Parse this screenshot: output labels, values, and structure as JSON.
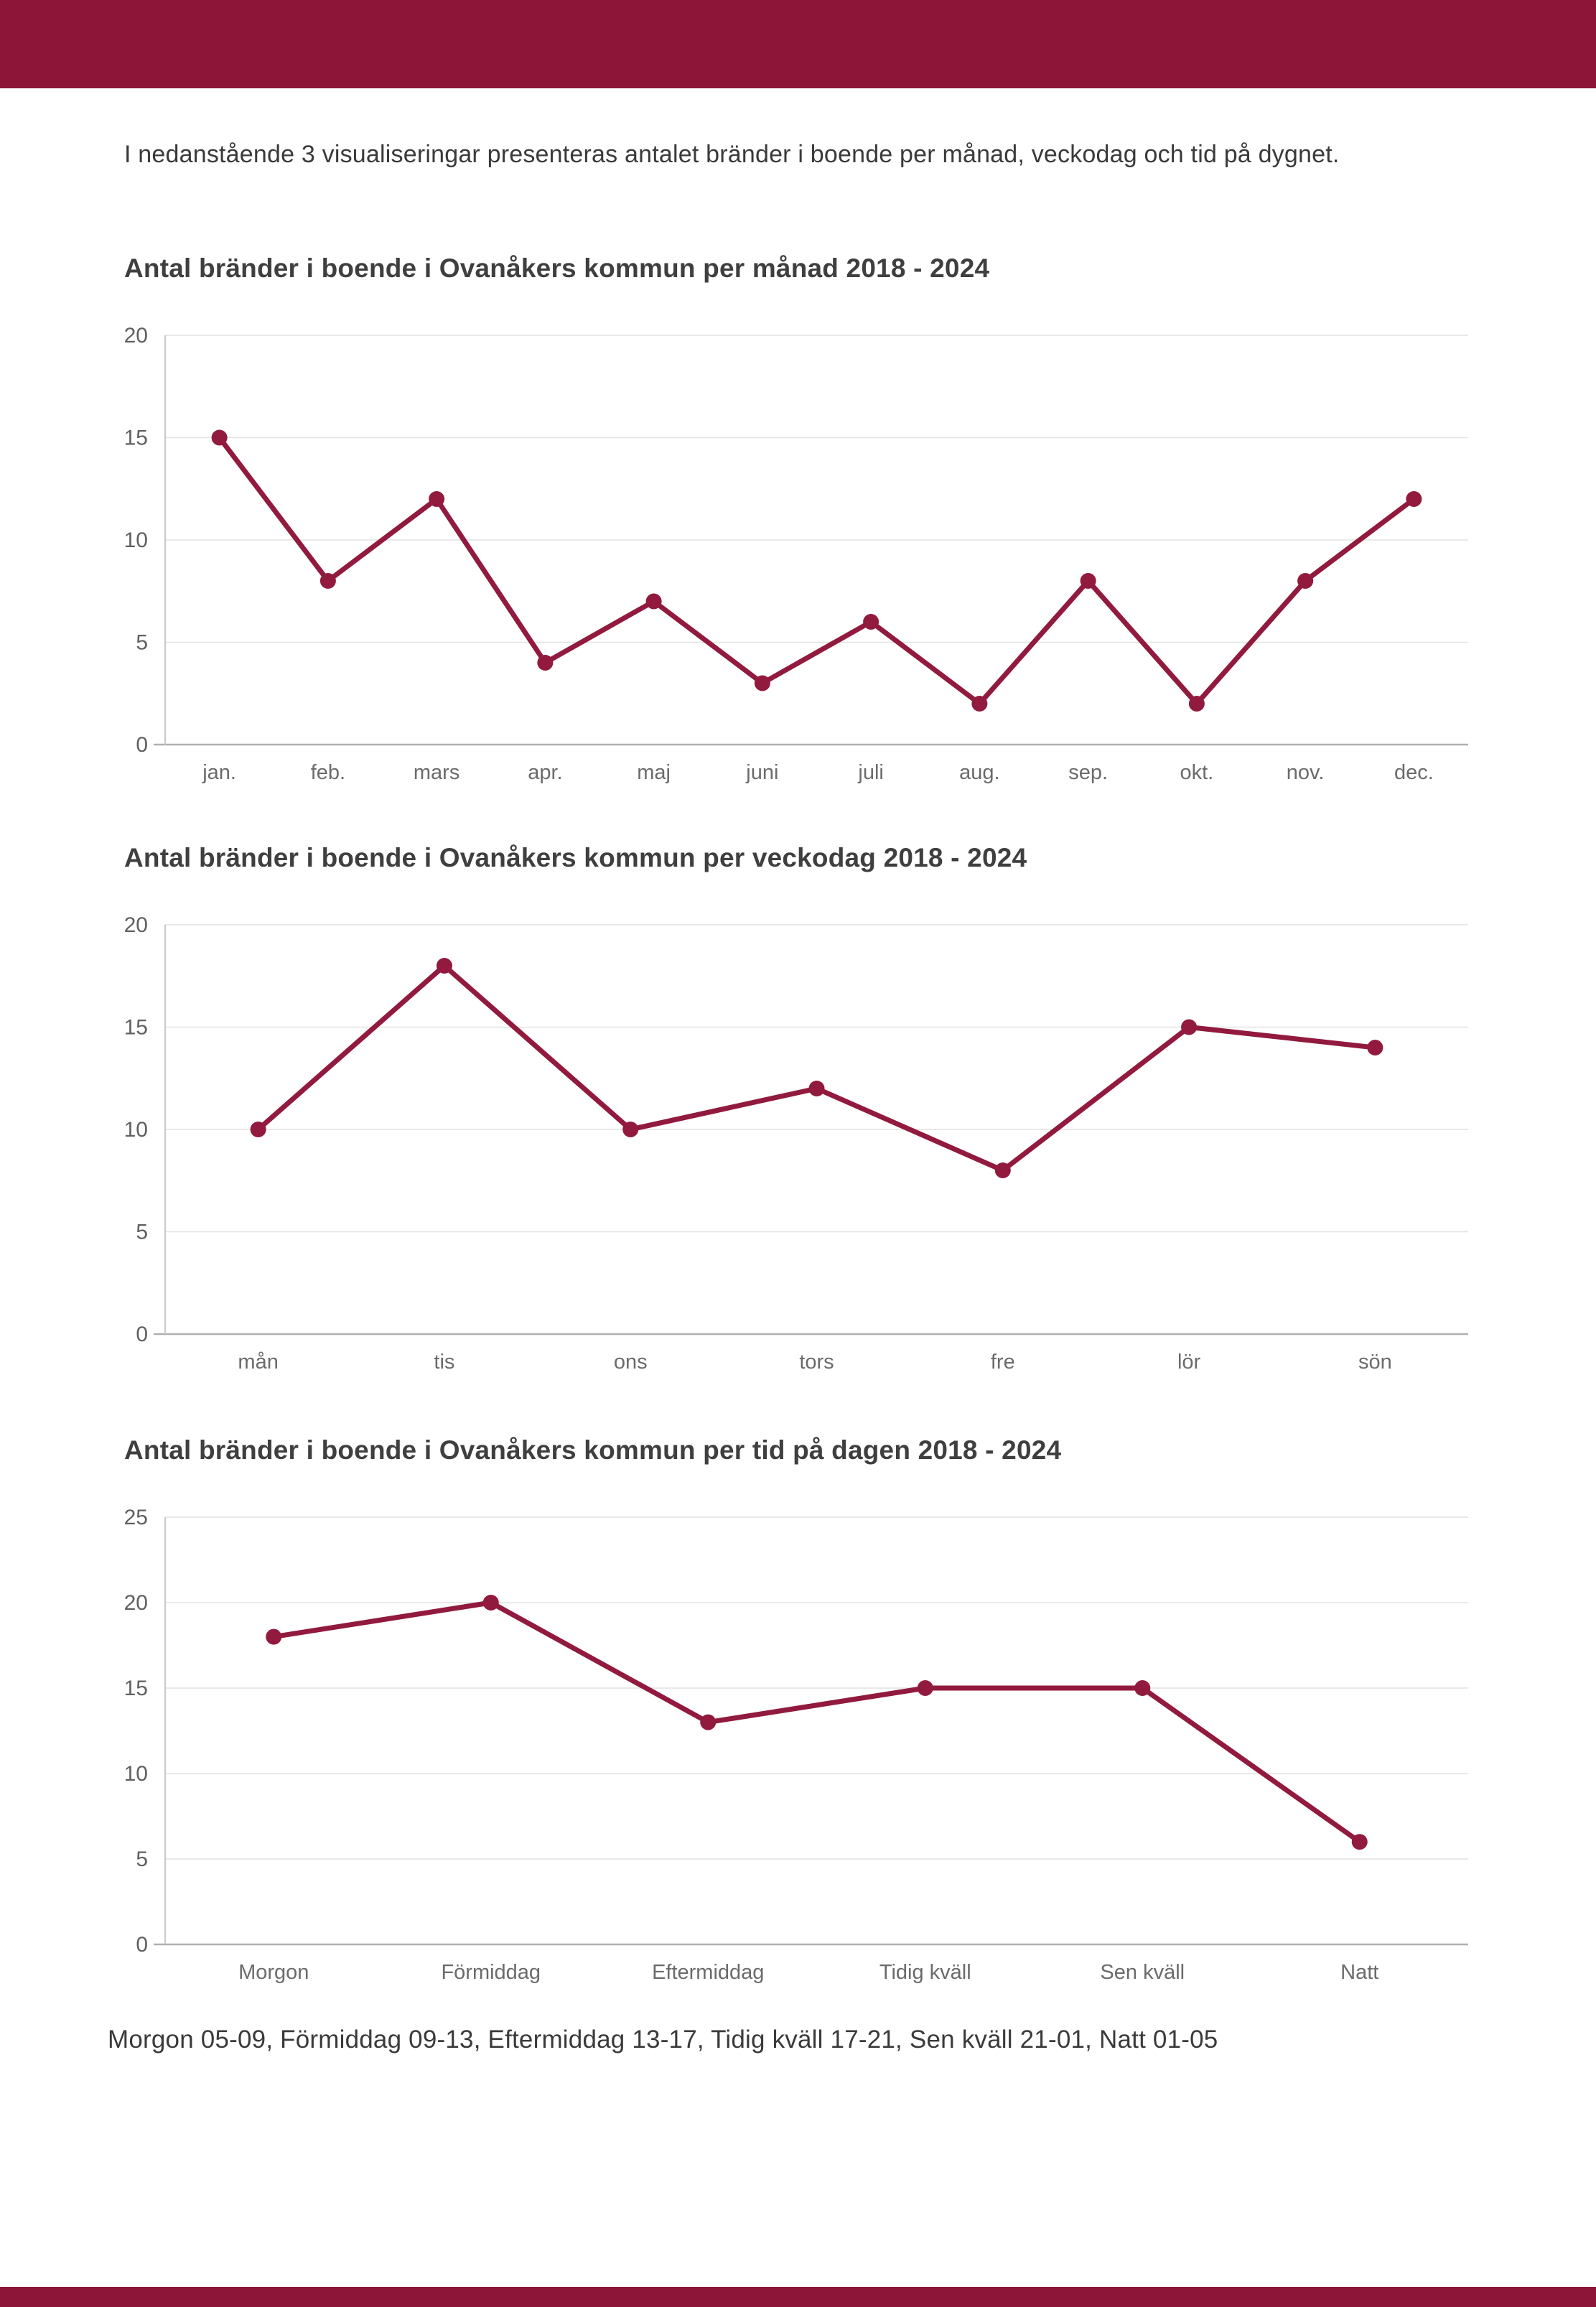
{
  "page": {
    "intro": "I nedanstående 3 visualiseringar presenteras antalet bränder i boende per månad, veckodag och tid på dygnet.",
    "footnote": "Morgon 05-09, Förmiddag 09-13, Eftermiddag 13-17, Tidig kväll 17-21, Sen kväll 21-01, Natt 01-05",
    "accent_color": "#8d1538",
    "series_color": "#911a3e",
    "gridline_color": "#e2e2e2",
    "axis_color": "#c9c9c9",
    "baseline_color": "#b0b0b0",
    "tick_label_color": "#606060"
  },
  "chart_data": [
    {
      "type": "line",
      "title": "Antal bränder i boende i Ovanåkers kommun per månad 2018 - 2024",
      "categories": [
        "jan.",
        "feb.",
        "mars",
        "apr.",
        "maj",
        "juni",
        "juli",
        "aug.",
        "sep.",
        "okt.",
        "nov.",
        "dec."
      ],
      "values": [
        15,
        8,
        12,
        4,
        7,
        3,
        6,
        2,
        8,
        2,
        8,
        12
      ],
      "xlabel": "",
      "ylabel": "",
      "ylim": [
        0,
        20
      ],
      "yticks": [
        0,
        5,
        10,
        15,
        20
      ],
      "grid": true,
      "legend": "none"
    },
    {
      "type": "line",
      "title": "Antal bränder i boende i Ovanåkers kommun per veckodag 2018 - 2024",
      "categories": [
        "mån",
        "tis",
        "ons",
        "tors",
        "fre",
        "lör",
        "sön"
      ],
      "values": [
        10,
        18,
        10,
        12,
        8,
        15,
        14
      ],
      "xlabel": "",
      "ylabel": "",
      "ylim": [
        0,
        20
      ],
      "yticks": [
        0,
        5,
        10,
        15,
        20
      ],
      "grid": true,
      "legend": "none"
    },
    {
      "type": "line",
      "title": "Antal bränder i boende i Ovanåkers kommun per tid på dagen 2018 - 2024",
      "categories": [
        "Morgon",
        "Förmiddag",
        "Eftermiddag",
        "Tidig kväll",
        "Sen kväll",
        "Natt"
      ],
      "values": [
        18,
        20,
        13,
        15,
        15,
        6
      ],
      "xlabel": "",
      "ylabel": "",
      "ylim": [
        0,
        25
      ],
      "yticks": [
        0,
        5,
        10,
        15,
        20,
        25
      ],
      "grid": true,
      "legend": "none"
    }
  ]
}
